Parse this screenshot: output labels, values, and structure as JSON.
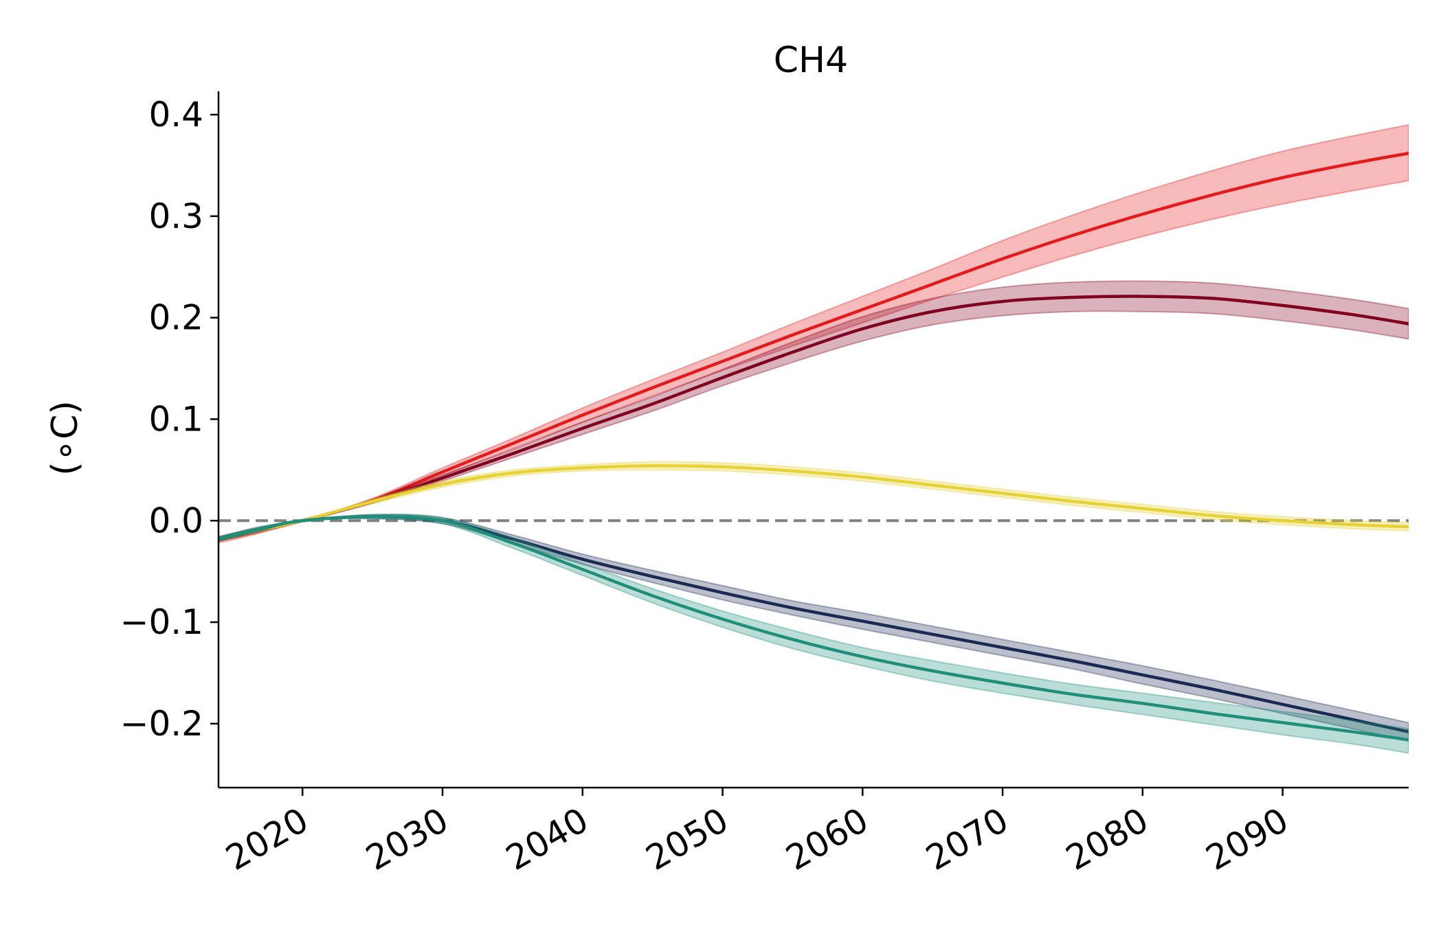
{
  "chart_data": {
    "type": "line",
    "title": "CH4",
    "xlabel": "",
    "ylabel": "(∘C)",
    "xlim": [
      2014,
      2099
    ],
    "ylim": [
      -0.263,
      0.423
    ],
    "x_ticks": [
      2020,
      2030,
      2040,
      2050,
      2060,
      2070,
      2080,
      2090
    ],
    "x_tick_labels": [
      "2020",
      "2030",
      "2040",
      "2050",
      "2060",
      "2070",
      "2080",
      "2090"
    ],
    "y_ticks": [
      -0.2,
      -0.1,
      0.0,
      0.1,
      0.2,
      0.3,
      0.4
    ],
    "y_tick_labels": [
      "−0.2",
      "−0.1",
      "0.0",
      "0.1",
      "0.2",
      "0.3",
      "0.4"
    ],
    "grid": false,
    "reference_line": {
      "y": 0.0,
      "style": "dashed",
      "color": "#808080"
    },
    "x": [
      2014,
      2017,
      2020,
      2025,
      2030,
      2035,
      2040,
      2045,
      2050,
      2055,
      2060,
      2065,
      2070,
      2075,
      2080,
      2085,
      2090,
      2095,
      2099
    ],
    "series": [
      {
        "color": "#e41a1c",
        "values": [
          -0.019,
          -0.01,
          0.0,
          0.02,
          0.048,
          0.076,
          0.104,
          0.131,
          0.157,
          0.183,
          0.208,
          0.233,
          0.258,
          0.281,
          0.302,
          0.321,
          0.338,
          0.352,
          0.362
        ],
        "lower": [
          -0.022,
          -0.012,
          0.0,
          0.018,
          0.044,
          0.071,
          0.097,
          0.123,
          0.148,
          0.172,
          0.195,
          0.218,
          0.24,
          0.261,
          0.28,
          0.297,
          0.312,
          0.325,
          0.335
        ],
        "upper": [
          -0.016,
          -0.008,
          0.0,
          0.022,
          0.052,
          0.081,
          0.111,
          0.139,
          0.166,
          0.194,
          0.221,
          0.248,
          0.276,
          0.301,
          0.324,
          0.345,
          0.364,
          0.379,
          0.39
        ]
      },
      {
        "color": "#800020",
        "values": [
          -0.018,
          -0.009,
          0.0,
          0.019,
          0.042,
          0.066,
          0.091,
          0.115,
          0.141,
          0.166,
          0.189,
          0.206,
          0.216,
          0.22,
          0.221,
          0.219,
          0.212,
          0.203,
          0.194
        ],
        "lower": [
          -0.02,
          -0.011,
          0.0,
          0.017,
          0.039,
          0.062,
          0.085,
          0.108,
          0.133,
          0.156,
          0.177,
          0.193,
          0.202,
          0.206,
          0.206,
          0.204,
          0.197,
          0.188,
          0.179
        ],
        "upper": [
          -0.016,
          -0.007,
          0.0,
          0.021,
          0.045,
          0.07,
          0.097,
          0.122,
          0.149,
          0.176,
          0.201,
          0.219,
          0.23,
          0.235,
          0.236,
          0.234,
          0.227,
          0.218,
          0.209
        ]
      },
      {
        "color": "#e6d234",
        "values": [
          -0.018,
          -0.009,
          0.0,
          0.019,
          0.036,
          0.047,
          0.052,
          0.054,
          0.053,
          0.049,
          0.043,
          0.035,
          0.027,
          0.019,
          0.012,
          0.005,
          0.0,
          -0.004,
          -0.006
        ],
        "lower": [
          -0.02,
          -0.011,
          0.0,
          0.017,
          0.033,
          0.044,
          0.049,
          0.05,
          0.049,
          0.045,
          0.039,
          0.031,
          0.023,
          0.015,
          0.008,
          0.001,
          -0.004,
          -0.008,
          -0.01
        ],
        "upper": [
          -0.016,
          -0.007,
          0.0,
          0.021,
          0.039,
          0.05,
          0.055,
          0.058,
          0.057,
          0.053,
          0.047,
          0.039,
          0.031,
          0.023,
          0.016,
          0.009,
          0.004,
          0.0,
          -0.002
        ]
      },
      {
        "color": "#1a2a52",
        "values": [
          -0.018,
          -0.008,
          0.0,
          0.004,
          0.0,
          -0.018,
          -0.038,
          -0.055,
          -0.071,
          -0.086,
          -0.099,
          -0.112,
          -0.125,
          -0.138,
          -0.152,
          -0.166,
          -0.181,
          -0.196,
          -0.208
        ],
        "lower": [
          -0.02,
          -0.01,
          0.0,
          0.002,
          -0.003,
          -0.022,
          -0.043,
          -0.061,
          -0.078,
          -0.093,
          -0.107,
          -0.12,
          -0.133,
          -0.146,
          -0.161,
          -0.175,
          -0.19,
          -0.205,
          -0.217
        ],
        "upper": [
          -0.016,
          -0.006,
          0.0,
          0.006,
          0.003,
          -0.014,
          -0.033,
          -0.049,
          -0.064,
          -0.079,
          -0.091,
          -0.104,
          -0.117,
          -0.13,
          -0.143,
          -0.157,
          -0.172,
          -0.187,
          -0.199
        ]
      },
      {
        "color": "#1f8f7a",
        "values": [
          -0.018,
          -0.008,
          0.0,
          0.004,
          0.0,
          -0.022,
          -0.048,
          -0.074,
          -0.097,
          -0.117,
          -0.134,
          -0.148,
          -0.16,
          -0.171,
          -0.18,
          -0.19,
          -0.199,
          -0.208,
          -0.216
        ],
        "lower": [
          -0.02,
          -0.01,
          0.0,
          0.002,
          -0.003,
          -0.027,
          -0.054,
          -0.081,
          -0.105,
          -0.126,
          -0.143,
          -0.158,
          -0.17,
          -0.181,
          -0.191,
          -0.201,
          -0.211,
          -0.22,
          -0.229
        ],
        "upper": [
          -0.016,
          -0.006,
          0.0,
          0.006,
          0.003,
          -0.017,
          -0.042,
          -0.067,
          -0.089,
          -0.108,
          -0.125,
          -0.138,
          -0.15,
          -0.161,
          -0.17,
          -0.179,
          -0.188,
          -0.197,
          -0.205
        ]
      }
    ]
  }
}
